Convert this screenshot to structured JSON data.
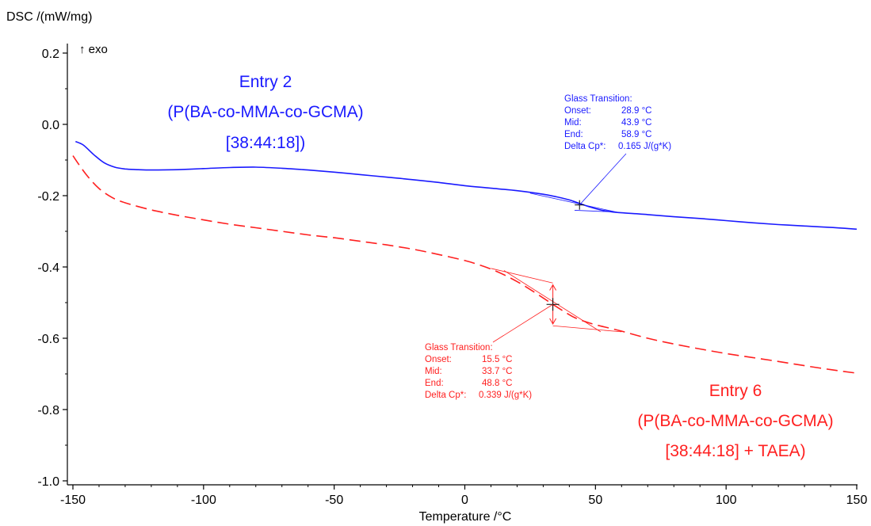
{
  "chart_data": {
    "type": "line",
    "title": "",
    "ylabel": "DSC /(mW/mg)",
    "xlabel": "Temperature /°C",
    "exo_label": "↑ exo",
    "xlim": [
      -152,
      150
    ],
    "ylim": [
      -1.02,
      0.22
    ],
    "x_ticks": [
      -150,
      -100,
      -50,
      0,
      50,
      100,
      150
    ],
    "x_tick_labels": [
      "-150",
      "-100",
      "-50",
      "0",
      "50",
      "100",
      "150"
    ],
    "y_ticks": [
      0.2,
      0.0,
      -0.2,
      -0.4,
      -0.6,
      -0.8,
      -1.0
    ],
    "y_tick_labels": [
      "0.2",
      "0.0",
      "-0.2",
      "-0.4",
      "-0.6",
      "-0.8",
      "-1.0"
    ],
    "grid": false,
    "series": [
      {
        "label_lines": [
          "Entry 2",
          "(P(BA-co-MMA-co-GCMA)",
          "[38:44:18])"
        ],
        "color": "#1a1aff",
        "style": "solid",
        "x": [
          -149,
          -146,
          -142,
          -138,
          -134,
          -130,
          -125,
          -120,
          -110,
          -100,
          -90,
          -80,
          -70,
          -60,
          -50,
          -40,
          -30,
          -20,
          -10,
          0,
          10,
          20,
          30,
          35,
          40,
          44,
          48,
          52,
          56,
          60,
          70,
          80,
          90,
          100,
          110,
          120,
          130,
          140,
          150
        ],
        "y": [
          -0.048,
          -0.058,
          -0.085,
          -0.108,
          -0.12,
          -0.125,
          -0.127,
          -0.128,
          -0.127,
          -0.124,
          -0.121,
          -0.12,
          -0.123,
          -0.128,
          -0.134,
          -0.141,
          -0.148,
          -0.155,
          -0.163,
          -0.172,
          -0.179,
          -0.186,
          -0.196,
          -0.203,
          -0.212,
          -0.222,
          -0.232,
          -0.24,
          -0.245,
          -0.248,
          -0.253,
          -0.259,
          -0.264,
          -0.27,
          -0.276,
          -0.281,
          -0.285,
          -0.289,
          -0.294
        ],
        "glass_transition": {
          "title": "Glass Transition:",
          "rows": [
            {
              "key": "Onset:",
              "value": "28.9 °C"
            },
            {
              "key": "Mid:",
              "value": "43.9 °C"
            },
            {
              "key": "End:",
              "value": "58.9 °C"
            },
            {
              "key": "Delta Cp*:",
              "value": "0.165 J/(g*K)"
            }
          ],
          "mid_point": [
            43.9,
            -0.226
          ]
        }
      },
      {
        "label_lines": [
          "Entry 6",
          "(P(BA-co-MMA-co-GCMA)",
          "[38:44:18] + TAEA)"
        ],
        "color": "#ff2020",
        "style": "dashed",
        "x": [
          -150,
          -145,
          -140,
          -135,
          -130,
          -120,
          -110,
          -100,
          -90,
          -80,
          -70,
          -60,
          -50,
          -40,
          -30,
          -20,
          -10,
          0,
          5,
          10,
          15,
          20,
          25,
          30,
          33.7,
          38,
          42,
          46,
          50,
          55,
          60,
          70,
          80,
          90,
          100,
          110,
          120,
          130,
          140,
          150
        ],
        "y": [
          -0.088,
          -0.14,
          -0.18,
          -0.205,
          -0.22,
          -0.24,
          -0.255,
          -0.268,
          -0.28,
          -0.29,
          -0.3,
          -0.31,
          -0.318,
          -0.328,
          -0.338,
          -0.35,
          -0.365,
          -0.382,
          -0.393,
          -0.406,
          -0.422,
          -0.441,
          -0.463,
          -0.487,
          -0.505,
          -0.525,
          -0.542,
          -0.553,
          -0.562,
          -0.571,
          -0.58,
          -0.6,
          -0.616,
          -0.63,
          -0.643,
          -0.654,
          -0.665,
          -0.677,
          -0.688,
          -0.698
        ],
        "glass_transition": {
          "title": "Glass Transition:",
          "rows": [
            {
              "key": "Onset:",
              "value": "15.5 °C"
            },
            {
              "key": "Mid:",
              "value": "33.7 °C"
            },
            {
              "key": "End:",
              "value": "48.8 °C"
            },
            {
              "key": "Delta Cp*:",
              "value": "0.339 J/(g*K)"
            }
          ],
          "mid_point": [
            33.7,
            -0.505
          ]
        }
      }
    ]
  }
}
